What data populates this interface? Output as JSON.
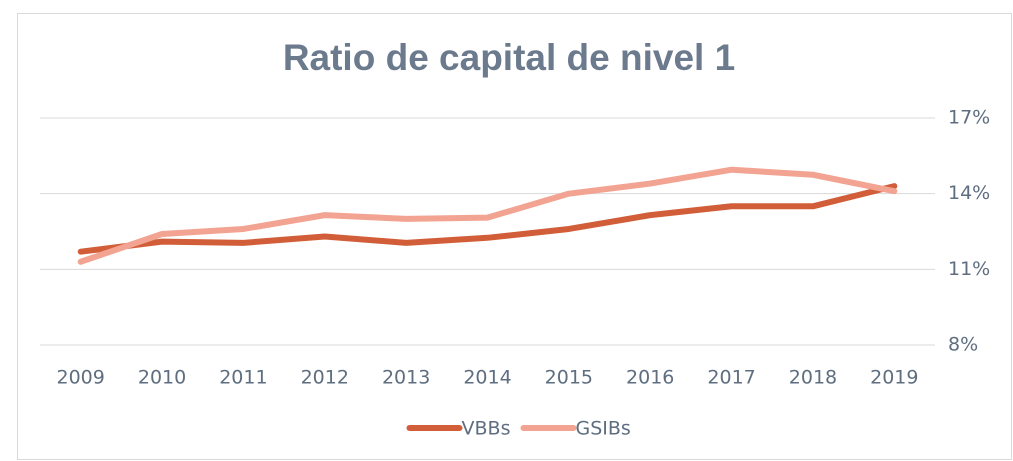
{
  "chart_data": {
    "type": "line",
    "title": "Ratio de capital de nivel 1",
    "categories": [
      "2009",
      "2010",
      "2011",
      "2012",
      "2013",
      "2014",
      "2015",
      "2016",
      "2017",
      "2018",
      "2019"
    ],
    "series": [
      {
        "name": "VBBs",
        "color": "#d15e38",
        "values": [
          11.7,
          12.1,
          12.05,
          12.3,
          12.05,
          12.25,
          12.6,
          13.15,
          13.5,
          13.5,
          14.3
        ]
      },
      {
        "name": "GSIBs",
        "color": "#f2a391",
        "values": [
          11.3,
          12.4,
          12.6,
          13.15,
          13.0,
          13.05,
          14.0,
          14.4,
          14.95,
          14.75,
          14.1
        ]
      }
    ],
    "ylim": [
      8,
      17
    ],
    "yticks": [
      {
        "value": 8,
        "label": "8%"
      },
      {
        "value": 11,
        "label": "11%"
      },
      {
        "value": 14,
        "label": "14%"
      },
      {
        "value": 17,
        "label": "17%"
      }
    ],
    "grid": true,
    "legend": "bottom"
  }
}
